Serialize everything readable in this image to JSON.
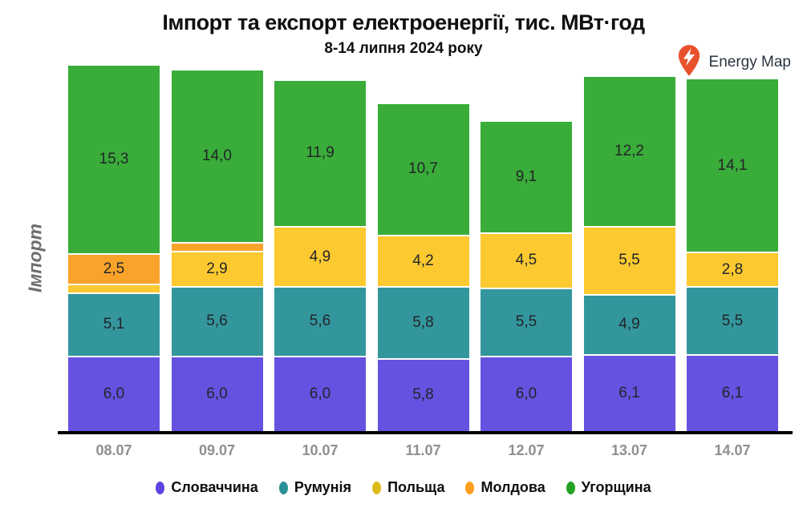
{
  "title": "Імпорт та експорт електроенергії, тис. МВт·год",
  "subtitle": "8-14 липня 2024 року",
  "logo": {
    "text": "Energy Map",
    "pin_color": "#e8512d",
    "bolt_color": "#ffffff",
    "text_color": "#2a3441"
  },
  "y_axis_label": "Імпорт",
  "chart_data": {
    "type": "bar",
    "stacked": true,
    "title": "Імпорт та експорт електроенергії, тис. МВт·год",
    "subtitle": "8-14 липня 2024 року",
    "ylabel": "Імпорт",
    "xlabel": "",
    "grid": false,
    "legend_position": "bottom",
    "value_decimal_separator": ",",
    "categories": [
      "08.07",
      "09.07",
      "10.07",
      "11.07",
      "12.07",
      "13.07",
      "14.07"
    ],
    "series": [
      {
        "name": "Словаччина",
        "color": "#6552e0",
        "legend_color": "#5a45df",
        "values": [
          6.0,
          6.0,
          6.0,
          5.8,
          6.0,
          6.1,
          6.1
        ],
        "labels": [
          "6,0",
          "6,0",
          "6,0",
          "5,8",
          "6,0",
          "6,1",
          "6,1"
        ]
      },
      {
        "name": "Румунія",
        "color": "#33969d",
        "legend_color": "#2a8f96",
        "values": [
          5.1,
          5.6,
          5.6,
          5.8,
          5.5,
          4.9,
          5.5
        ],
        "labels": [
          "5,1",
          "5,6",
          "5,6",
          "5,8",
          "5,5",
          "4,9",
          "5,5"
        ]
      },
      {
        "name": "Польща",
        "color": "#fcc930",
        "legend_color": "#ddbb1c",
        "values": [
          0.7,
          2.9,
          4.9,
          4.2,
          4.5,
          5.5,
          2.8
        ],
        "labels": [
          "",
          "2,9",
          "4,9",
          "4,2",
          "4,5",
          "5,5",
          "2,8"
        ]
      },
      {
        "name": "Молдова",
        "color": "#faa32a",
        "legend_color": "#ff9d1e",
        "values": [
          2.5,
          0.7,
          0,
          0,
          0,
          0,
          0
        ],
        "labels": [
          "2,5",
          "",
          "",
          "",
          "",
          "",
          ""
        ]
      },
      {
        "name": "Угорщина",
        "color": "#39ac39",
        "legend_color": "#23a123",
        "values": [
          15.3,
          14.0,
          11.9,
          10.7,
          9.1,
          12.2,
          14.1
        ],
        "labels": [
          "15,3",
          "14,0",
          "11,9",
          "10,7",
          "9,1",
          "12,2",
          "14,1"
        ]
      }
    ]
  },
  "colors": {
    "background": "#ffffff",
    "axis_line": "#000000",
    "tick_label": "#8f8f8f",
    "segment_label": "#232529",
    "title_text": "#101010"
  }
}
